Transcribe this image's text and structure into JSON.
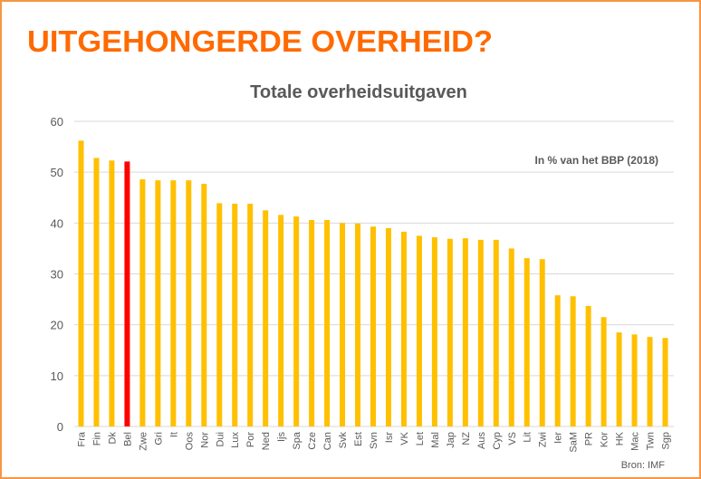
{
  "slide_title": "UITGEHONGERDE OVERHEID?",
  "colors": {
    "title": "#FF6A00",
    "frame": "#F79646",
    "bar": "#FFC000",
    "highlight_bar": "#FF0000",
    "grid": "#D9D9D9",
    "text": "#595959"
  },
  "chart_data": {
    "type": "bar",
    "title": "Totale overheidsuitgaven",
    "annotation": "In % van het BBP (2018)",
    "source": "Bron: IMF",
    "xlabel": "",
    "ylabel": "",
    "ylim": [
      0,
      60
    ],
    "yticks": [
      0,
      10,
      20,
      30,
      40,
      50,
      60
    ],
    "grid": true,
    "highlight": "Bel",
    "categories": [
      "Fra",
      "Fin",
      "Dk",
      "Bel",
      "Zwe",
      "Gri",
      "It",
      "Oos",
      "Nor",
      "Dui",
      "Lux",
      "Por",
      "Ned",
      "Ijs",
      "Spa",
      "Cze",
      "Can",
      "Svk",
      "Est",
      "Svn",
      "Isr",
      "VK",
      "Let",
      "Mal",
      "Jap",
      "NZ",
      "Aus",
      "Cyp",
      "VS",
      "Lit",
      "Zwi",
      "Ier",
      "SaM",
      "PR",
      "Kor",
      "HK",
      "Mac",
      "Twn",
      "Sgp"
    ],
    "values": [
      56.2,
      52.8,
      52.3,
      52.1,
      48.6,
      48.4,
      48.4,
      48.4,
      47.7,
      43.9,
      43.8,
      43.8,
      42.5,
      41.6,
      41.3,
      40.6,
      40.6,
      40.0,
      39.9,
      39.3,
      39.0,
      38.3,
      37.5,
      37.2,
      36.9,
      37.0,
      36.7,
      36.7,
      35.0,
      33.1,
      32.9,
      25.8,
      25.6,
      23.7,
      21.5,
      18.5,
      18.1,
      17.6,
      17.4
    ]
  }
}
